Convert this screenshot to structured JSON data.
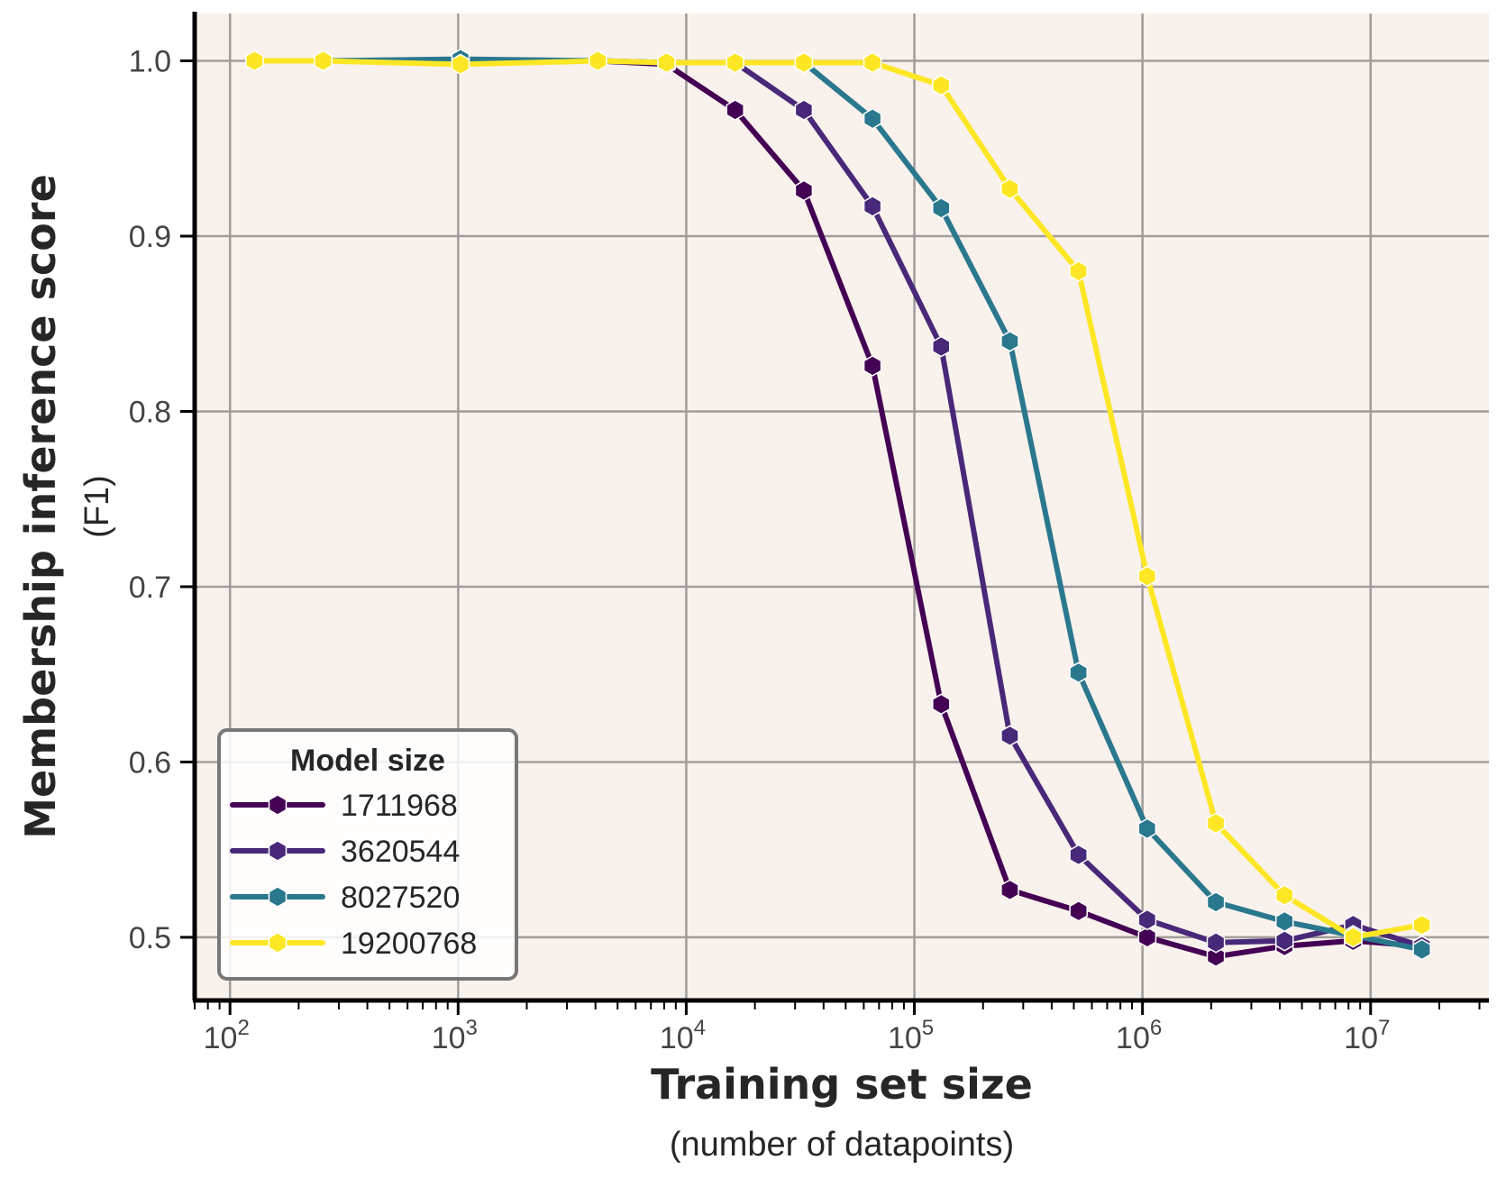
{
  "chart_data": {
    "type": "line",
    "xlabel": "Training set size",
    "xlabel_sub": "(number of datapoints)",
    "ylabel": "Membership inference score",
    "ylabel_sub": "(F1)",
    "xscale": "log",
    "xlim": [
      70,
      33000000
    ],
    "ylim": [
      0.465,
      1.027
    ],
    "x_ticks": [
      {
        "value": 100,
        "base": "10",
        "exp": "2"
      },
      {
        "value": 1000,
        "base": "10",
        "exp": "3"
      },
      {
        "value": 10000,
        "base": "10",
        "exp": "4"
      },
      {
        "value": 100000,
        "base": "10",
        "exp": "5"
      },
      {
        "value": 1000000,
        "base": "10",
        "exp": "6"
      },
      {
        "value": 10000000,
        "base": "10",
        "exp": "7"
      }
    ],
    "y_ticks": [
      {
        "value": 0.5,
        "label": "0.5"
      },
      {
        "value": 0.6,
        "label": "0.6"
      },
      {
        "value": 0.7,
        "label": "0.7"
      },
      {
        "value": 0.8,
        "label": "0.8"
      },
      {
        "value": 0.9,
        "label": "0.9"
      },
      {
        "value": 1.0,
        "label": "1.0"
      }
    ],
    "grid": true,
    "background": "#f9f1ec",
    "grid_color": "#a19d9a",
    "legend": {
      "title": "Model size",
      "position": "lower-left"
    },
    "x": [
      128,
      256,
      1024,
      4096,
      8192,
      16384,
      32768,
      65536,
      131072,
      262144,
      524288,
      1048576,
      2097152,
      4194304,
      8388608,
      16777216
    ],
    "series": [
      {
        "name": "1711968",
        "color": "#440154",
        "values": [
          1.0,
          1.0,
          1.0,
          1.0,
          0.998,
          0.972,
          0.926,
          0.826,
          0.633,
          0.527,
          0.515,
          0.5,
          0.489,
          0.495,
          0.498,
          0.495
        ]
      },
      {
        "name": "3620544",
        "color": "#482878",
        "values": [
          1.0,
          1.0,
          1.0,
          1.0,
          0.999,
          0.999,
          0.972,
          0.917,
          0.837,
          0.615,
          0.547,
          0.51,
          0.497,
          0.498,
          0.507,
          0.495
        ]
      },
      {
        "name": "8027520",
        "color": "#2a788e",
        "values": [
          1.0,
          1.0,
          1.001,
          1.0,
          0.999,
          0.999,
          0.999,
          0.967,
          0.916,
          0.84,
          0.651,
          0.562,
          0.52,
          0.509,
          0.501,
          0.493
        ]
      },
      {
        "name": "19200768",
        "color": "#fde725",
        "values": [
          1.0,
          1.0,
          0.998,
          1.0,
          0.999,
          0.999,
          0.999,
          0.999,
          0.986,
          0.927,
          0.88,
          0.706,
          0.565,
          0.524,
          0.5,
          0.507
        ]
      }
    ]
  }
}
